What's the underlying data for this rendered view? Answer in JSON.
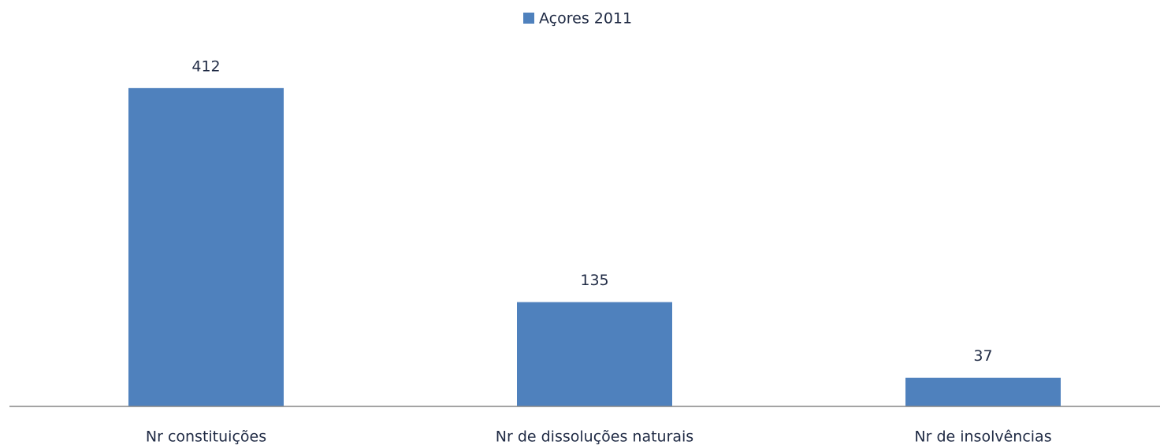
{
  "chart_data": {
    "type": "bar",
    "categories": [
      "Nr constituições",
      "Nr de dissoluções naturais",
      "Nr de insolvências"
    ],
    "series": [
      {
        "name": "Açores 2011",
        "color": "#4f81bd",
        "values": [
          412,
          135,
          37
        ]
      }
    ],
    "ylim": [
      0,
      420
    ],
    "legend": "top",
    "data_labels": true
  }
}
